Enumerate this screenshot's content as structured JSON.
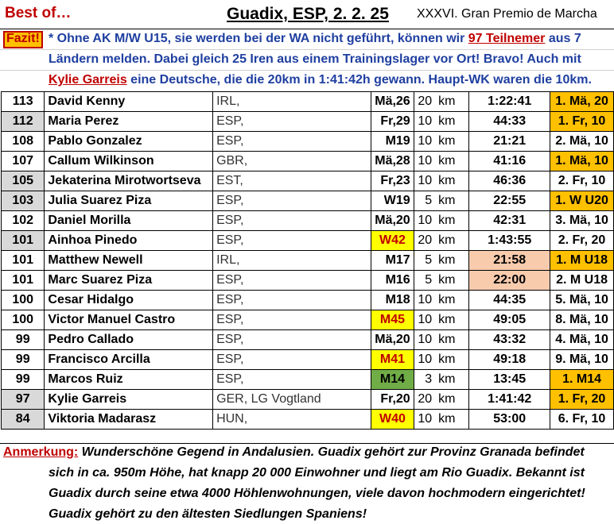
{
  "header": {
    "best_of": "Best of…",
    "title": "Guadix, ESP, 2. 2. 25",
    "subtitle": "XXXVI. Gran Premio de Marcha"
  },
  "fazit": {
    "label": "Fazit!",
    "line1_a": "* Ohne AK M/W U15, sie werden bei der WA nicht geführt, können wir ",
    "line1_red": "97 Teilnemer",
    "line1_b": " aus 7",
    "line2": "Ländern melden. Dabei gleich 25 Iren aus einem Trainingslager vor Ort! Bravo! Auch mit",
    "line3_red": "Kylie Garreis",
    "line3_b": " eine Deutsche, die die 20km in 1:41:42h gewann. Haupt-WK waren die 10km."
  },
  "table": {
    "rows": [
      {
        "pts": "113",
        "name": "David Kenny",
        "nat": "IRL,",
        "ak": "Mä,26",
        "dist": "20",
        "unit": "km",
        "time": "1:22:41",
        "place": "1. Mä, 20",
        "pts_grey": false,
        "ak_style": "",
        "time_style": "",
        "place_style": "orange"
      },
      {
        "pts": "112",
        "name": "Maria Perez",
        "nat": "ESP,",
        "ak": "Fr,29",
        "dist": "10",
        "unit": "km",
        "time": "44:33",
        "place": "1. Fr, 10",
        "pts_grey": true,
        "ak_style": "",
        "time_style": "",
        "place_style": "orange"
      },
      {
        "pts": "108",
        "name": "Pablo Gonzalez",
        "nat": "ESP,",
        "ak": "M19",
        "dist": "10",
        "unit": "km",
        "time": "21:21",
        "place": "2. Mä, 10",
        "pts_grey": false,
        "ak_style": "",
        "time_style": "",
        "place_style": ""
      },
      {
        "pts": "107",
        "name": "Callum Wilkinson",
        "nat": "GBR,",
        "ak": "Mä,28",
        "dist": "10",
        "unit": "km",
        "time": "41:16",
        "place": "1. Mä, 10",
        "pts_grey": false,
        "ak_style": "",
        "time_style": "",
        "place_style": "orange"
      },
      {
        "pts": "105",
        "name": "Jekaterina Mirotwortseva",
        "nat": "EST,",
        "ak": "Fr,23",
        "dist": "10",
        "unit": "km",
        "time": "46:36",
        "place": "2. Fr, 10",
        "pts_grey": true,
        "ak_style": "",
        "time_style": "",
        "place_style": ""
      },
      {
        "pts": "103",
        "name": "Julia Suarez Piza",
        "nat": "ESP,",
        "ak": "W19",
        "dist": "5",
        "unit": "km",
        "time": "22:55",
        "place": "1. W U20",
        "pts_grey": true,
        "ak_style": "",
        "time_style": "",
        "place_style": "orange"
      },
      {
        "pts": "102",
        "name": "Daniel Morilla",
        "nat": "ESP,",
        "ak": "Mä,20",
        "dist": "10",
        "unit": "km",
        "time": "42:31",
        "place": "3. Mä, 10",
        "pts_grey": false,
        "ak_style": "",
        "time_style": "",
        "place_style": ""
      },
      {
        "pts": "101",
        "name": "Ainhoa Pinedo",
        "nat": "ESP,",
        "ak": "W42",
        "dist": "20",
        "unit": "km",
        "time": "1:43:55",
        "place": "2. Fr, 20",
        "pts_grey": true,
        "ak_style": "yellow",
        "time_style": "",
        "place_style": ""
      },
      {
        "pts": "101",
        "name": "Matthew Newell",
        "nat": "IRL,",
        "ak": "M17",
        "dist": "5",
        "unit": "km",
        "time": "21:58",
        "place": "1. M U18",
        "pts_grey": false,
        "ak_style": "",
        "time_style": "peach",
        "place_style": "orange"
      },
      {
        "pts": "101",
        "name": "Marc Suarez Piza",
        "nat": "ESP,",
        "ak": "M16",
        "dist": "5",
        "unit": "km",
        "time": "22:00",
        "place": "2. M U18",
        "pts_grey": false,
        "ak_style": "",
        "time_style": "peach",
        "place_style": ""
      },
      {
        "pts": "100",
        "name": "Cesar Hidalgo",
        "nat": "ESP,",
        "ak": "M18",
        "dist": "10",
        "unit": "km",
        "time": "44:35",
        "place": "5. Mä, 10",
        "pts_grey": false,
        "ak_style": "",
        "time_style": "",
        "place_style": ""
      },
      {
        "pts": "100",
        "name": "Victor Manuel Castro",
        "nat": "ESP,",
        "ak": "M45",
        "dist": "10",
        "unit": "km",
        "time": "49:05",
        "place": "8. Mä, 10",
        "pts_grey": false,
        "ak_style": "yellow",
        "time_style": "",
        "place_style": ""
      },
      {
        "pts": "99",
        "name": "Pedro Callado",
        "nat": "ESP,",
        "ak": "Mä,20",
        "dist": "10",
        "unit": "km",
        "time": "43:32",
        "place": "4. Mä, 10",
        "pts_grey": false,
        "ak_style": "",
        "time_style": "",
        "place_style": ""
      },
      {
        "pts": "99",
        "name": "Francisco Arcilla",
        "nat": "ESP,",
        "ak": "M41",
        "dist": "10",
        "unit": "km",
        "time": "49:18",
        "place": "9. Mä, 10",
        "pts_grey": false,
        "ak_style": "yellow",
        "time_style": "",
        "place_style": ""
      },
      {
        "pts": "99",
        "name": "Marcos Ruiz",
        "nat": "ESP,",
        "ak": "M14",
        "dist": "3",
        "unit": "km",
        "time": "13:45",
        "place": "1. M14",
        "pts_grey": false,
        "ak_style": "green",
        "time_style": "",
        "place_style": "orange"
      },
      {
        "pts": "97",
        "name": "Kylie Garreis",
        "nat": "GER, LG Vogtland",
        "ak": "Fr,20",
        "dist": "20",
        "unit": "km",
        "time": "1:41:42",
        "place": "1. Fr, 20",
        "pts_grey": true,
        "ak_style": "",
        "time_style": "",
        "place_style": "orange"
      },
      {
        "pts": "84",
        "name": "Viktoria Madarasz",
        "nat": "HUN,",
        "ak": "W40",
        "dist": "10",
        "unit": "km",
        "time": "53:00",
        "place": "6. Fr, 10",
        "pts_grey": true,
        "ak_style": "yellow",
        "time_style": "",
        "place_style": ""
      }
    ]
  },
  "anmerkung": {
    "label": "Anmerkung:",
    "line1": " Wunderschöne Gegend in Andalusien. Guadix gehört zur Provinz Granada befindet",
    "line2": "sich in ca. 950m Höhe, hat knapp 20 000 Einwohner und liegt am Rio Guadix. Bekannt ist",
    "line3": "Guadix durch seine etwa 4000 Höhlenwohnungen, viele davon hochmodern eingerichtet!",
    "line4": "Guadix gehört zu den ältesten Siedlungen Spaniens!"
  }
}
